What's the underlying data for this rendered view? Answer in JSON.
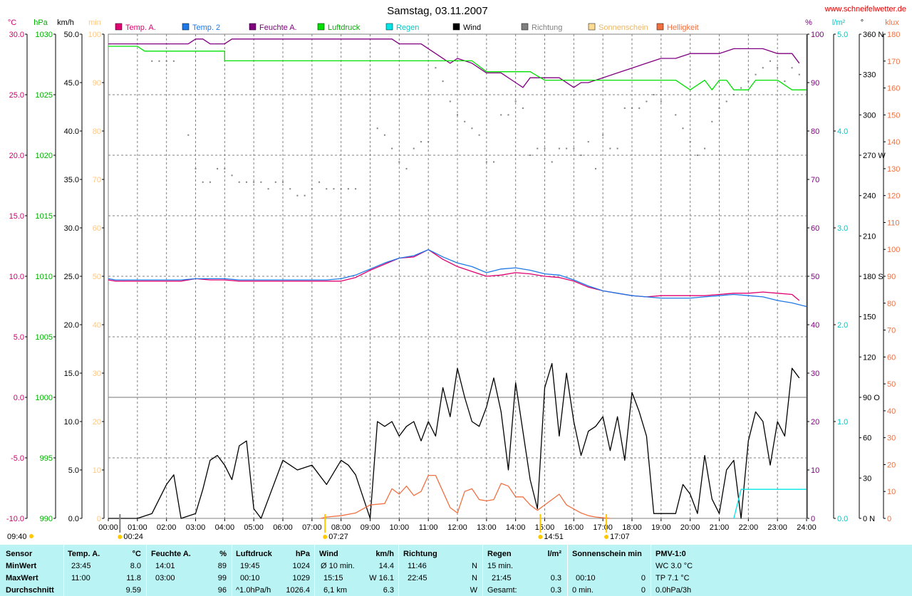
{
  "header": {
    "title": "Samstag, 03.11.2007",
    "site": "www.schneifelwetter.de"
  },
  "chart_data": {
    "type": "line",
    "title": "Samstag, 03.11.2007",
    "x_ticks": [
      "00:00",
      "01:00",
      "02:00",
      "03:00",
      "04:00",
      "05:00",
      "06:00",
      "07:00",
      "08:00",
      "09:00",
      "10:00",
      "11:00",
      "12:00",
      "13:00",
      "14:00",
      "15:00",
      "16:00",
      "17:00",
      "18:00",
      "19:00",
      "20:00",
      "21:00",
      "22:00",
      "23:00",
      "24:00"
    ],
    "x_range_hours": [
      0,
      24
    ],
    "grid": true,
    "axes": {
      "temp": {
        "unit": "°C",
        "ticks": [
          "30.0",
          "25.0",
          "20.0",
          "15.0",
          "10.0",
          "5.0",
          "0.0",
          "-5.0",
          "-10.0"
        ],
        "range": [
          -10,
          30
        ],
        "color": "#d00070"
      },
      "pressure": {
        "unit": "hPa",
        "ticks": [
          "1030",
          "1025",
          "1020",
          "1015",
          "1010",
          "1005",
          "1000",
          "995",
          "990"
        ],
        "range": [
          990,
          1030
        ],
        "color": "#00b000"
      },
      "wind": {
        "unit": "km/h",
        "ticks": [
          "50.0",
          "45.0",
          "40.0",
          "35.0",
          "30.0",
          "25.0",
          "20.0",
          "15.0",
          "10.0",
          "5.0",
          "0.0"
        ],
        "range": [
          0,
          50
        ],
        "color": "#000000"
      },
      "sunshine": {
        "unit": "min",
        "ticks": [
          "100",
          "90",
          "80",
          "70",
          "60",
          "50",
          "40",
          "30",
          "20",
          "10",
          "0"
        ],
        "range": [
          0,
          100
        ],
        "color": "#ffc880"
      },
      "humidity": {
        "unit": "%",
        "ticks": [
          "100",
          "90",
          "80",
          "70",
          "60",
          "50",
          "40",
          "30",
          "20",
          "10",
          "0"
        ],
        "range": [
          0,
          100
        ],
        "color": "#800080"
      },
      "rain": {
        "unit": "l/m²",
        "ticks": [
          "5.0",
          "4.0",
          "3.0",
          "2.0",
          "1.0",
          "0.0"
        ],
        "range": [
          0,
          5
        ],
        "color": "#00c8c8"
      },
      "direction": {
        "unit": "°",
        "ticks": [
          "360 N",
          "330",
          "300",
          "270 W",
          "240",
          "210",
          "180 S",
          "150",
          "120",
          "90 O",
          "60",
          "30",
          "0 N"
        ],
        "range": [
          0,
          360
        ],
        "color": "#000000"
      },
      "brightness": {
        "unit": "klux",
        "ticks": [
          "180",
          "170",
          "160",
          "150",
          "140",
          "130",
          "120",
          "110",
          "100",
          "90",
          "80",
          "70",
          "60",
          "50",
          "40",
          "30",
          "20",
          "10",
          "0"
        ],
        "range": [
          0,
          180
        ],
        "color": "#f07040"
      }
    },
    "legend": [
      {
        "name": "Temp. A.",
        "color": "#e00070"
      },
      {
        "name": "Temp. 2",
        "color": "#1e78e6"
      },
      {
        "name": "Feuchte A.",
        "color": "#800080"
      },
      {
        "name": "Luftdruck",
        "color": "#00e000"
      },
      {
        "name": "Regen",
        "color": "#00e6e6"
      },
      {
        "name": "Wind",
        "color": "#000000"
      },
      {
        "name": "Richtung",
        "color": "#808080"
      },
      {
        "name": "Sonnenschein",
        "color": "#ffdc96"
      },
      {
        "name": "Helligkeit",
        "color": "#f07040"
      }
    ],
    "series": [
      {
        "name": "Temp. A.",
        "axis": "temp",
        "color": "#e00070",
        "x": [
          0,
          0.25,
          1,
          2,
          2.5,
          3,
          3.5,
          4,
          4.5,
          5,
          5.5,
          6,
          6.5,
          7,
          7.5,
          8,
          8.5,
          9,
          9.5,
          10,
          10.5,
          11,
          11.5,
          12,
          12.5,
          13,
          13.5,
          14,
          14.5,
          15,
          15.5,
          16,
          16.5,
          17,
          17.5,
          18,
          18.5,
          19,
          19.5,
          20,
          20.5,
          21,
          21.5,
          22,
          22.5,
          23,
          23.5,
          23.75
        ],
        "y": [
          9.7,
          9.6,
          9.6,
          9.6,
          9.6,
          9.8,
          9.7,
          9.7,
          9.6,
          9.6,
          9.6,
          9.6,
          9.6,
          9.6,
          9.6,
          9.6,
          9.9,
          10.5,
          11,
          11.5,
          11.6,
          12.2,
          11.4,
          10.8,
          10.4,
          10.0,
          10.1,
          10.3,
          10.2,
          10.0,
          9.9,
          9.6,
          9.1,
          8.8,
          8.6,
          8.4,
          8.3,
          8.4,
          8.4,
          8.4,
          8.4,
          8.5,
          8.6,
          8.6,
          8.7,
          8.6,
          8.5,
          8.0
        ]
      },
      {
        "name": "Temp. 2",
        "axis": "temp",
        "color": "#1e78e6",
        "x": [
          0,
          0.25,
          1,
          2,
          2.5,
          3,
          3.5,
          4,
          4.5,
          5,
          5.5,
          6,
          6.5,
          7,
          7.5,
          8,
          8.5,
          9,
          9.5,
          10,
          10.5,
          11,
          11.5,
          12,
          12.5,
          13,
          13.5,
          14,
          14.5,
          15,
          15.5,
          16,
          16.5,
          17,
          17.5,
          18,
          18.5,
          19,
          19.5,
          20,
          20.5,
          21,
          21.5,
          22,
          22.5,
          23,
          23.5,
          24
        ],
        "y": [
          9.8,
          9.7,
          9.7,
          9.7,
          9.7,
          9.8,
          9.8,
          9.8,
          9.7,
          9.7,
          9.7,
          9.7,
          9.7,
          9.7,
          9.7,
          9.8,
          10.1,
          10.6,
          11.1,
          11.5,
          11.7,
          12.2,
          11.6,
          11.1,
          10.8,
          10.3,
          10.6,
          10.7,
          10.5,
          10.2,
          10.1,
          9.7,
          9.2,
          8.8,
          8.6,
          8.4,
          8.3,
          8.2,
          8.2,
          8.2,
          8.3,
          8.4,
          8.5,
          8.4,
          8.3,
          8.0,
          7.8,
          7.5
        ]
      },
      {
        "name": "Feuchte A.",
        "axis": "humidity",
        "color": "#800080",
        "x": [
          0,
          1,
          2,
          2.75,
          3,
          3.25,
          3.5,
          4,
          4.25,
          5,
          6,
          7,
          8,
          9,
          9.75,
          10,
          10.75,
          11,
          11.25,
          11.75,
          12,
          12.5,
          13,
          13.5,
          14,
          14.25,
          14.5,
          15,
          15.5,
          16,
          16.25,
          16.5,
          17,
          17.5,
          18,
          18.5,
          19,
          19.5,
          20,
          20.5,
          21,
          21.5,
          22,
          22.5,
          23,
          23.5,
          23.75
        ],
        "y": [
          98,
          98,
          98,
          98,
          99,
          99,
          98,
          98,
          99,
          99,
          99,
          99,
          99,
          99,
          99,
          98,
          98,
          97,
          96,
          94,
          95,
          94,
          92,
          92,
          90,
          89,
          91,
          91,
          91,
          89,
          90,
          90,
          91,
          92,
          93,
          94,
          95,
          95,
          96,
          96,
          96,
          97,
          97,
          97,
          96,
          96,
          94
        ]
      },
      {
        "name": "Luftdruck",
        "axis": "pressure",
        "color": "#00e000",
        "x": [
          0,
          1,
          1.25,
          2,
          3,
          4,
          4,
          5,
          7,
          8,
          9,
          10,
          11,
          12,
          12.5,
          13,
          13.5,
          14,
          14.5,
          15,
          16,
          17,
          18,
          19,
          19.5,
          20,
          20.5,
          20.75,
          21,
          21.25,
          21.5,
          21.75,
          22,
          22.25,
          23,
          23.5,
          24
        ],
        "y": [
          1029,
          1029,
          1028.6,
          1028.6,
          1028.6,
          1028.6,
          1027.8,
          1027.8,
          1027.8,
          1027.8,
          1027.8,
          1027.8,
          1027.8,
          1027.8,
          1027.8,
          1026.9,
          1026.9,
          1026.9,
          1026.9,
          1026.2,
          1026.2,
          1026.2,
          1026.2,
          1026.2,
          1026.2,
          1025.4,
          1026.2,
          1025.4,
          1026.2,
          1026.2,
          1025.4,
          1025.4,
          1025.4,
          1026.2,
          1026.2,
          1025.4,
          1025.4
        ]
      },
      {
        "name": "Wind",
        "axis": "wind",
        "color": "#000000",
        "x": [
          0,
          0.5,
          1,
          1.5,
          2,
          2.25,
          2.5,
          3,
          3.25,
          3.5,
          3.75,
          4,
          4.25,
          4.5,
          4.75,
          5,
          5.25,
          5.5,
          6,
          6.25,
          6.5,
          7,
          7.25,
          7.5,
          8,
          8.25,
          8.5,
          9,
          9.25,
          9.5,
          9.75,
          10,
          10.25,
          10.5,
          10.75,
          11,
          11.25,
          11.5,
          11.75,
          12,
          12.25,
          12.5,
          12.75,
          13,
          13.25,
          13.5,
          13.75,
          14,
          14.25,
          14.5,
          14.75,
          15,
          15.25,
          15.5,
          15.75,
          16,
          16.25,
          16.5,
          16.75,
          17,
          17.25,
          17.5,
          17.75,
          18,
          18.25,
          18.5,
          18.75,
          19,
          19.25,
          19.5,
          19.75,
          20,
          20.25,
          20.5,
          20.75,
          21,
          21.25,
          21.5,
          21.75,
          22,
          22.25,
          22.5,
          22.75,
          23,
          23.25,
          23.5,
          23.75
        ],
        "y": [
          0,
          0,
          0,
          0.5,
          3.5,
          4.5,
          0,
          0.5,
          3,
          6,
          6.5,
          5.5,
          4,
          7.5,
          8,
          1,
          0,
          2,
          6,
          5.5,
          5,
          5.5,
          4.5,
          3.5,
          6,
          5.5,
          4.5,
          0,
          10,
          9.5,
          10,
          8.5,
          9.5,
          10,
          8,
          10,
          8.5,
          13.5,
          10.5,
          15.5,
          12.5,
          10,
          9.5,
          11.5,
          14.5,
          11,
          5,
          14,
          9,
          4,
          1,
          13.5,
          16,
          8.5,
          15,
          10,
          6.5,
          9,
          9.5,
          10.5,
          7,
          10.5,
          6,
          13,
          11,
          8.5,
          0.5,
          0.5,
          0.5,
          0.5,
          3.5,
          2.5,
          0.5,
          6.5,
          2,
          0.5,
          5,
          6,
          0,
          8,
          11,
          10,
          5.5,
          10,
          8.5,
          15.5,
          14.5
        ]
      },
      {
        "name": "Helligkeit",
        "axis": "brightness",
        "color": "#f07040",
        "x": [
          7.3,
          7.5,
          8,
          8.5,
          9,
          9.5,
          9.75,
          10,
          10.25,
          10.5,
          10.75,
          11,
          11.25,
          11.5,
          11.75,
          12,
          12.25,
          12.5,
          12.75,
          13,
          13.25,
          13.5,
          13.75,
          14,
          14.25,
          14.5,
          14.75,
          15,
          15.25,
          15.5,
          15.75,
          16,
          16.25,
          16.5,
          16.75,
          17,
          17.25
        ],
        "y": [
          0,
          0.5,
          1,
          2,
          5,
          5.5,
          11,
          9,
          12,
          8.5,
          10,
          16,
          16,
          10,
          4,
          2,
          10,
          11,
          7,
          6.5,
          7,
          13,
          12,
          8,
          8,
          5,
          3,
          5,
          7,
          9,
          5,
          3.5,
          2,
          1,
          0.5,
          0.2,
          0
        ]
      },
      {
        "name": "Regen",
        "axis": "rain",
        "color": "#00e6e6",
        "x": [
          21.5,
          21.75,
          21.76,
          24
        ],
        "y": [
          0,
          0.3,
          0.3,
          0.3
        ]
      },
      {
        "name": "Richtung",
        "axis": "direction",
        "color": "#808080",
        "mode": "dots",
        "x": [
          1.5,
          1.75,
          2,
          2.25,
          2.75,
          3,
          3.25,
          3.5,
          3.75,
          4,
          4.25,
          4.5,
          4.75,
          5,
          5.25,
          5.5,
          5.75,
          6,
          6.25,
          6.5,
          6.75,
          7,
          7.25,
          7.5,
          7.75,
          8,
          8.25,
          8.5,
          9.25,
          9.5,
          9.75,
          10,
          10.25,
          10.5,
          10.75,
          11,
          11.25,
          11.5,
          11.75,
          12,
          12.25,
          12.5,
          12.75,
          13,
          13.25,
          13.5,
          13.75,
          14,
          14.25,
          14.5,
          14.75,
          15,
          15.25,
          15.5,
          15.75,
          16,
          16.25,
          16.5,
          16.75,
          17,
          17.25,
          17.5,
          17.75,
          18,
          18.25,
          18.5,
          18.75,
          19,
          19.5,
          19.75,
          20,
          20.25,
          20.5,
          20.75,
          21,
          21.25,
          21.5,
          21.75,
          22,
          22.25,
          22.5,
          22.75,
          23,
          23.25,
          23.5,
          23.75
        ],
        "y": [
          340,
          340,
          340,
          340,
          285,
          260,
          250,
          250,
          260,
          260,
          255,
          250,
          250,
          250,
          250,
          245,
          250,
          250,
          245,
          240,
          240,
          245,
          250,
          245,
          245,
          245,
          245,
          245,
          290,
          285,
          275,
          265,
          260,
          275,
          280,
          280,
          335,
          325,
          310,
          300,
          295,
          290,
          285,
          265,
          265,
          300,
          300,
          310,
          305,
          270,
          275,
          275,
          265,
          275,
          275,
          275,
          270,
          280,
          260,
          285,
          275,
          275,
          305,
          305,
          305,
          310,
          315,
          310,
          300,
          290,
          280,
          270,
          275,
          295,
          305,
          310,
          315,
          320,
          325,
          330,
          335,
          340,
          335,
          325,
          335,
          330
        ]
      }
    ],
    "markers": [
      {
        "label": "00:24",
        "hour": 0.4
      },
      {
        "label": "07:27",
        "hour": 7.45
      },
      {
        "label": "14:51",
        "hour": 14.85
      },
      {
        "label": "17:07",
        "hour": 17.12
      }
    ],
    "corner_time": "09:40"
  },
  "stats": {
    "headers": {
      "sensor": "Sensor",
      "temp": "Temp. A.",
      "temp_unit": "°C",
      "hum": "Feuchte A.",
      "hum_unit": "%",
      "press": "Luftdruck",
      "press_unit": "hPa",
      "wind": "Wind",
      "wind_unit": "km/h",
      "dir": "Richtung",
      "rain": "Regen",
      "rain_unit": "l/m²",
      "sun": "Sonnenschein min",
      "pmv": "PMV-1:0"
    },
    "rows": {
      "min": {
        "label": "MinWert",
        "temp_time": "23:45",
        "temp": "8.0",
        "hum_time": "14:01",
        "hum": "89",
        "press_time": "19:45",
        "press": "1024",
        "wind_label": "Ø 10 min.",
        "wind": "14.4",
        "dir_time": "11:46",
        "dir": "N",
        "rain_label": "15 min.",
        "rain": "",
        "sun_time": "",
        "sun": "",
        "pmv": "WC 3.0 °C"
      },
      "max": {
        "label": "MaxWert",
        "temp_time": "11:00",
        "temp": "11.8",
        "hum_time": "03:00",
        "hum": "99",
        "press_time": "00:10",
        "press": "1029",
        "wind_label": "15:15",
        "wind": "W 16.1",
        "dir_time": "22:45",
        "dir": "N",
        "rain_label": "21:45",
        "rain": "0.3",
        "sun_time": "00:10",
        "sun": "0",
        "pmv": "TP 7.1 °C"
      },
      "avg": {
        "label": "Durchschnitt",
        "temp_time": "",
        "temp": "9.59",
        "hum_time": "",
        "hum": "96",
        "press_time": "^1.0hPa/h",
        "press": "1026.4",
        "wind_label": "6,1 km",
        "wind": "6.3",
        "dir_time": "",
        "dir": "W",
        "rain_label": "Gesamt:",
        "rain": "0.3",
        "sun_time": "0 min.",
        "sun": "0",
        "pmv": "0.0hPa/3h"
      }
    }
  }
}
